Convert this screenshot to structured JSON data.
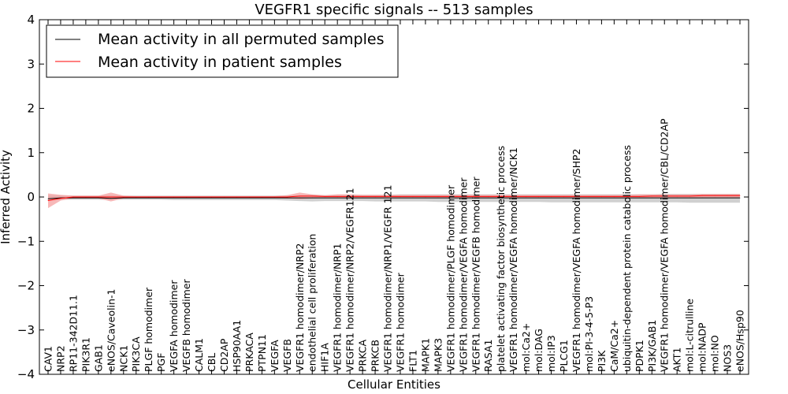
{
  "chart_data": {
    "type": "line",
    "title": "VEGFR1 specific signals -- 513 samples",
    "xlabel": "Cellular Entities",
    "ylabel": "Inferred Activity",
    "ylim": [
      -4,
      4
    ],
    "yticks": [
      "−4",
      "−3",
      "−2",
      "−1",
      "0",
      "1",
      "2",
      "3",
      "4"
    ],
    "grid": false,
    "legend_position": "top-left",
    "categories": [
      "CAV1",
      "NRP2",
      "RP11-342D11.1",
      "PIK3R1",
      "GAB1",
      "eNOS/Caveolin-1",
      "NCK1",
      "PIK3CA",
      "PLGF homodimer",
      "PGF",
      "VEGFA homodimer",
      "VEGFB homodimer",
      "CALM1",
      "CBL",
      "CD2AP",
      "HSP90AA1",
      "PRKACA",
      "PTPN11",
      "VEGFA",
      "VEGFB",
      "VEGFR1 homodimer/NRP2",
      "endothelial cell proliferation",
      "HIF1A",
      "VEGFR1 homodimer/NRP1",
      "VEGFR1 homodimer/NRP2/VEGFR121",
      "PRKCA",
      "PRKCB",
      "VEGFR1 homodimer/NRP1/VEGFR 121",
      "VEGFR1 homodimer",
      "FLT1",
      "MAPK1",
      "MAPK3",
      "VEGFR1 homodimer/PLGF homodimer",
      "VEGFR1 homodimer/VEGFA homodimer",
      "VEGFR1 homodimer/VEGFB homodimer",
      "RASA1",
      "platelet activating factor biosynthetic process",
      "VEGFR1 homodimer/VEGFA homodimer/NCK1",
      "mol:Ca2+",
      "mol:DAG",
      "mol:IP3",
      "PLCG1",
      "VEGFR1 homodimer/VEGFA homodimer/SHP2",
      "mol:PI-3-4-5-P3",
      "PI3K",
      "CaM/Ca2+",
      "ubiquitin-dependent protein catabolic process",
      "PDPK1",
      "PI3K/GAB1",
      "VEGFR1 homodimer/VEGFA homodimer/CBL/CD2AP",
      "AKT1",
      "mol:L-citrulline",
      "mol:NADP",
      "mol:NO",
      "NOS3",
      "eNOS/Hsp90"
    ],
    "series": [
      {
        "name": "Mean activity in all permuted samples",
        "color": "#000000",
        "band_color": "#b0b0b0",
        "values": [
          -0.04,
          -0.02,
          -0.02,
          -0.02,
          -0.02,
          -0.03,
          -0.02,
          -0.02,
          -0.02,
          -0.02,
          -0.02,
          -0.02,
          -0.02,
          -0.02,
          -0.02,
          -0.02,
          -0.02,
          -0.02,
          -0.02,
          -0.02,
          -0.02,
          -0.02,
          -0.02,
          -0.02,
          -0.02,
          -0.02,
          -0.02,
          -0.02,
          -0.02,
          -0.02,
          -0.02,
          -0.02,
          -0.02,
          -0.02,
          -0.02,
          -0.02,
          -0.02,
          -0.02,
          -0.02,
          -0.02,
          -0.02,
          -0.02,
          -0.02,
          -0.02,
          -0.02,
          -0.02,
          -0.02,
          -0.02,
          -0.02,
          -0.02,
          -0.02,
          -0.02,
          -0.02,
          -0.02,
          -0.02,
          -0.02
        ],
        "lower": [
          -0.08,
          -0.06,
          -0.06,
          -0.06,
          -0.06,
          -0.07,
          -0.06,
          -0.06,
          -0.06,
          -0.06,
          -0.07,
          -0.07,
          -0.07,
          -0.07,
          -0.07,
          -0.07,
          -0.07,
          -0.07,
          -0.07,
          -0.08,
          -0.09,
          -0.1,
          -0.09,
          -0.09,
          -0.09,
          -0.09,
          -0.1,
          -0.1,
          -0.1,
          -0.1,
          -0.1,
          -0.11,
          -0.11,
          -0.11,
          -0.11,
          -0.11,
          -0.11,
          -0.11,
          -0.11,
          -0.11,
          -0.12,
          -0.12,
          -0.12,
          -0.12,
          -0.12,
          -0.12,
          -0.12,
          -0.12,
          -0.12,
          -0.12,
          -0.12,
          -0.13,
          -0.13,
          -0.13,
          -0.13,
          -0.13
        ],
        "upper": [
          0.04,
          0.03,
          0.03,
          0.03,
          0.03,
          0.04,
          0.03,
          0.03,
          0.03,
          0.03,
          0.03,
          0.03,
          0.03,
          0.03,
          0.03,
          0.03,
          0.03,
          0.03,
          0.03,
          0.04,
          0.04,
          0.05,
          0.04,
          0.05,
          0.05,
          0.05,
          0.05,
          0.05,
          0.06,
          0.06,
          0.06,
          0.06,
          0.06,
          0.06,
          0.06,
          0.06,
          0.06,
          0.06,
          0.06,
          0.06,
          0.06,
          0.06,
          0.06,
          0.06,
          0.06,
          0.06,
          0.06,
          0.06,
          0.06,
          0.07,
          0.07,
          0.07,
          0.07,
          0.07,
          0.07,
          0.07
        ]
      },
      {
        "name": "Mean activity in patient samples",
        "color": "#ff0000",
        "band_color": "#f4a0a0",
        "values": [
          -0.08,
          -0.03,
          0.0,
          0.0,
          0.0,
          0.0,
          0.0,
          0.0,
          0.0,
          0.0,
          0.0,
          0.0,
          0.0,
          0.0,
          0.0,
          0.0,
          0.0,
          0.0,
          0.0,
          0.0,
          0.02,
          0.02,
          0.01,
          0.01,
          0.01,
          0.01,
          0.01,
          0.01,
          0.01,
          0.01,
          0.01,
          0.01,
          0.01,
          0.01,
          0.01,
          0.01,
          0.01,
          0.01,
          0.01,
          0.01,
          0.01,
          0.01,
          0.01,
          0.01,
          0.01,
          0.01,
          0.01,
          0.01,
          0.02,
          0.02,
          0.02,
          0.02,
          0.03,
          0.03,
          0.03,
          0.03
        ],
        "lower": [
          -0.25,
          -0.08,
          -0.03,
          -0.03,
          -0.03,
          -0.1,
          -0.03,
          -0.02,
          -0.02,
          -0.02,
          -0.02,
          -0.02,
          -0.02,
          -0.02,
          -0.02,
          -0.02,
          -0.02,
          -0.02,
          -0.02,
          -0.03,
          -0.05,
          -0.03,
          -0.02,
          -0.02,
          -0.02,
          -0.02,
          -0.02,
          -0.02,
          -0.02,
          -0.02,
          -0.02,
          -0.02,
          -0.02,
          -0.02,
          -0.02,
          -0.02,
          -0.02,
          -0.02,
          -0.02,
          -0.02,
          -0.02,
          -0.02,
          -0.02,
          -0.02,
          -0.02,
          -0.02,
          -0.02,
          -0.02,
          -0.01,
          -0.01,
          -0.01,
          -0.01,
          -0.01,
          -0.01,
          -0.01,
          -0.01
        ],
        "upper": [
          0.08,
          0.05,
          0.03,
          0.03,
          0.03,
          0.1,
          0.03,
          0.02,
          0.02,
          0.02,
          0.02,
          0.02,
          0.02,
          0.02,
          0.02,
          0.02,
          0.02,
          0.02,
          0.02,
          0.04,
          0.1,
          0.06,
          0.04,
          0.06,
          0.06,
          0.05,
          0.05,
          0.05,
          0.05,
          0.05,
          0.05,
          0.05,
          0.05,
          0.05,
          0.05,
          0.05,
          0.05,
          0.05,
          0.05,
          0.05,
          0.05,
          0.05,
          0.05,
          0.05,
          0.05,
          0.05,
          0.05,
          0.06,
          0.06,
          0.06,
          0.06,
          0.06,
          0.07,
          0.07,
          0.07,
          0.07
        ]
      }
    ]
  }
}
